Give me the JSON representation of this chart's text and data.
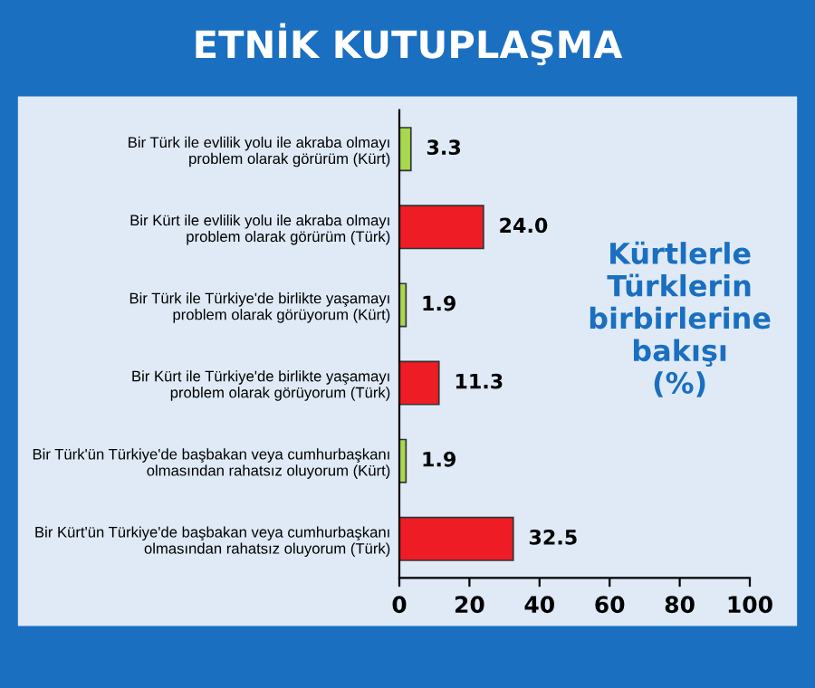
{
  "chart_data": {
    "type": "bar",
    "orientation": "horizontal",
    "title": "ETNİK KUTUPLAŞMA",
    "categories": [
      "Bir Türk ile evlilik yolu ile akraba olmayı\nproblem olarak görürüm (Kürt)",
      "Bir Kürt ile evlilik yolu ile akraba olmayı\nproblem olarak görürüm (Türk)",
      "Bir Türk ile Türkiye'de birlikte yaşamayı\nproblem olarak görüyorum (Kürt)",
      "Bir Kürt ile Türkiye'de birlikte yaşamayı\nproblem olarak görüyorum (Türk)",
      "Bir Türk'ün Türkiye'de başbakan veya cumhurbaşkanı\nolmasından rahatsız oluyorum (Kürt)",
      "Bir Kürt'ün Türkiye'de başbakan veya cumhurbaşkanı\nolmasından rahatsız oluyorum (Türk)"
    ],
    "values": [
      3.3,
      24.0,
      1.9,
      11.3,
      1.9,
      32.5
    ],
    "value_labels": [
      "3.3",
      "24.0",
      "1.9",
      "11.3",
      "1.9",
      "32.5"
    ],
    "colors": [
      "#a8d84e",
      "#ee1c25",
      "#a8d84e",
      "#ee1c25",
      "#a8d84e",
      "#ee1c25"
    ],
    "xlim": [
      0,
      100
    ],
    "xticks": [
      0,
      20,
      40,
      60,
      80,
      100
    ],
    "grid": false,
    "annotations": [
      "Kürtlerle\nTürklerin\nbirbirlerine\nbakışı\n(%)"
    ]
  }
}
